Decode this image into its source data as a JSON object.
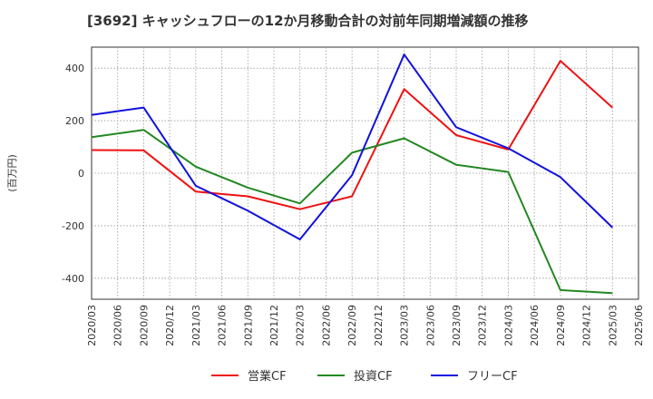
{
  "chart_data": {
    "type": "line",
    "title": "[3692]  キャッシュフローの12か月移動合計の対前年同期増減額の推移",
    "ylabel": "(百万円)",
    "xlabel": "",
    "ylim": [
      -480,
      480
    ],
    "yticks": [
      -400,
      -200,
      0,
      200,
      400
    ],
    "categories": [
      "2020/03",
      "2020/06",
      "2020/09",
      "2020/12",
      "2021/03",
      "2021/06",
      "2021/09",
      "2021/12",
      "2022/03",
      "2022/06",
      "2022/09",
      "2022/12",
      "2023/03",
      "2023/06",
      "2023/09",
      "2023/12",
      "2024/03",
      "2024/06",
      "2024/09",
      "2024/12",
      "2025/03",
      "2025/06"
    ],
    "grid": true,
    "legend_position": "bottom",
    "series": [
      {
        "name": "営業CF",
        "color": "#ee1111",
        "values": [
          88,
          null,
          87,
          null,
          -70,
          null,
          -88,
          null,
          -137,
          null,
          -88,
          null,
          320,
          null,
          145,
          null,
          90,
          null,
          428,
          null,
          250,
          null
        ]
      },
      {
        "name": "投資CF",
        "color": "#228822",
        "values": [
          137,
          null,
          165,
          null,
          25,
          null,
          -55,
          null,
          -115,
          null,
          78,
          null,
          133,
          null,
          32,
          null,
          5,
          null,
          -445,
          null,
          -457,
          null
        ]
      },
      {
        "name": "フリーCF",
        "color": "#1111dd",
        "values": [
          222,
          null,
          250,
          null,
          -48,
          null,
          -143,
          null,
          -252,
          null,
          -8,
          null,
          452,
          null,
          175,
          null,
          95,
          null,
          -15,
          null,
          -207,
          null
        ]
      }
    ]
  }
}
